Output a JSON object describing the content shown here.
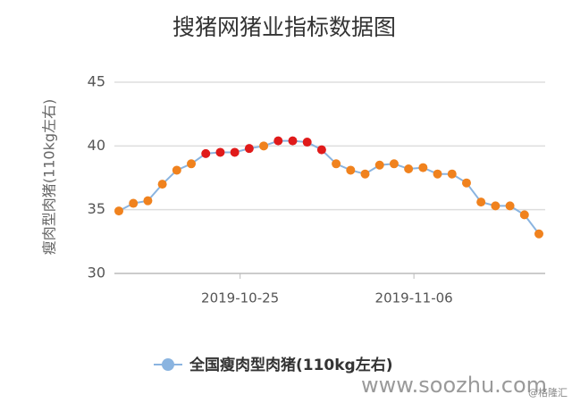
{
  "chart_data": {
    "type": "line",
    "title": "搜猪网猪业指标数据图",
    "y_label": "瘦肉型肉猪(110kg左右)",
    "categories": [
      null,
      null,
      null,
      null,
      null,
      null,
      null,
      null,
      "2019-10-25",
      null,
      null,
      null,
      null,
      null,
      null,
      null,
      null,
      null,
      null,
      null,
      "2019-11-06",
      null,
      null,
      null,
      null,
      null,
      null,
      null,
      null,
      null
    ],
    "series": [
      {
        "name": "全国瘦肉型肉猪(110kg左右)",
        "color": "#8ab4e0",
        "values": [
          34.9,
          35.5,
          35.7,
          37.0,
          38.1,
          38.6,
          39.4,
          39.5,
          39.5,
          39.8,
          40.0,
          40.4,
          40.4,
          40.3,
          39.7,
          38.6,
          38.1,
          37.8,
          38.5,
          38.6,
          38.2,
          38.3,
          37.8,
          37.8,
          37.1,
          35.6,
          35.3,
          35.3,
          34.6,
          33.1
        ],
        "point_colors": [
          "#f0821e",
          "#f0821e",
          "#f0821e",
          "#f0821e",
          "#f0821e",
          "#f0821e",
          "#e01a1a",
          "#e01a1a",
          "#e01a1a",
          "#e01a1a",
          "#f0821e",
          "#e01a1a",
          "#e01a1a",
          "#e01a1a",
          "#e01a1a",
          "#f0821e",
          "#f0821e",
          "#f0821e",
          "#f0821e",
          "#f0821e",
          "#f0821e",
          "#f0821e",
          "#f0821e",
          "#f0821e",
          "#f0821e",
          "#f0821e",
          "#f0821e",
          "#f0821e",
          "#f0821e",
          "#f0821e"
        ]
      }
    ],
    "ylim": [
      30,
      45
    ],
    "yticks": [
      30,
      35,
      40,
      45
    ],
    "grid": true
  },
  "watermark": "www.soozhu.com",
  "source": "@格隆汇"
}
